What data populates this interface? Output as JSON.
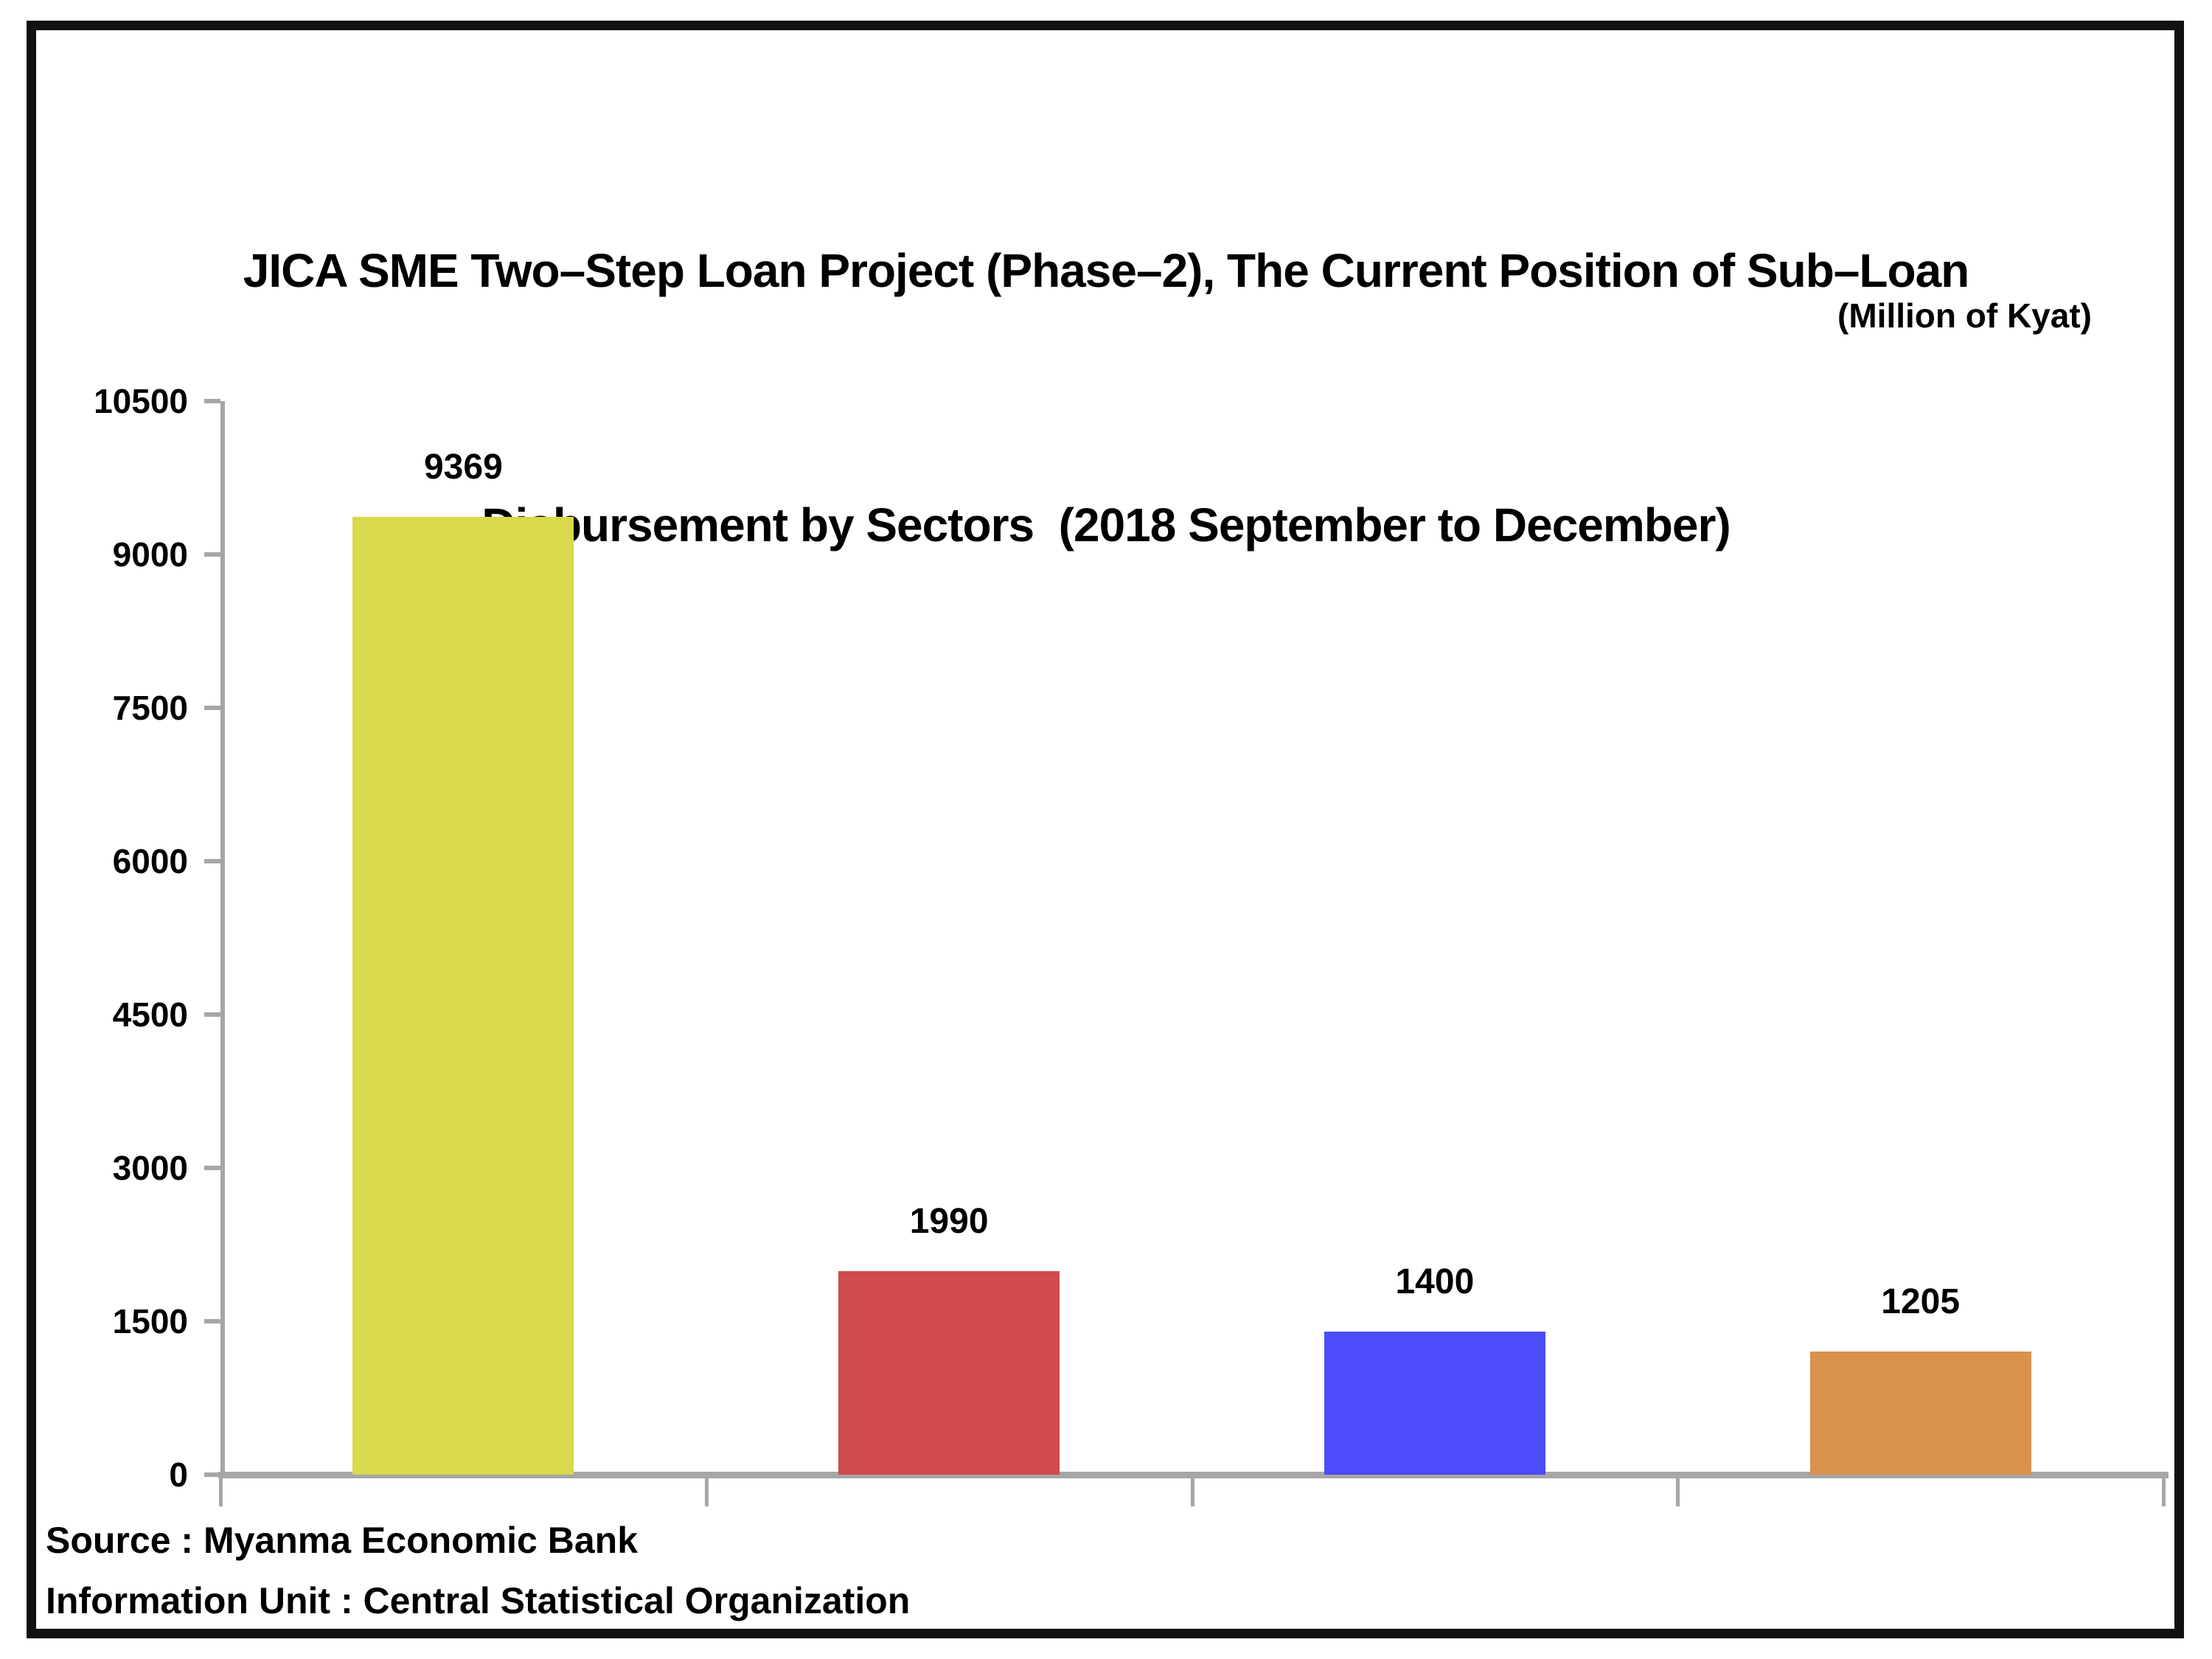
{
  "chart_data": {
    "type": "bar",
    "title_line1": "JICA SME Two–Step Loan Project (Phase–2), The Current Position of Sub–Loan",
    "title_line2": "Disbursement by Sectors  (2018 September to December)",
    "unit_label": "(Million of Kyat)",
    "values": [
      9369,
      1990,
      1400,
      1205
    ],
    "bar_labels": [
      "9369",
      "1990",
      "1400",
      "1205"
    ],
    "bar_colors": [
      "#d8d94c",
      "#cf4b4c",
      "#4b4dfa",
      "#d9924b"
    ],
    "y_ticks": [
      0,
      1500,
      3000,
      4500,
      6000,
      7500,
      9000,
      10500
    ],
    "ylim": [
      0,
      10500
    ],
    "x_axis_category_dividers": 5,
    "grid": false,
    "legend": false,
    "axis_color": "#a6a6a6",
    "text_color": "#000000"
  },
  "footer": {
    "source": "Source : Myanma Economic Bank",
    "information_unit": "Information Unit : Central Statistical Organization"
  }
}
